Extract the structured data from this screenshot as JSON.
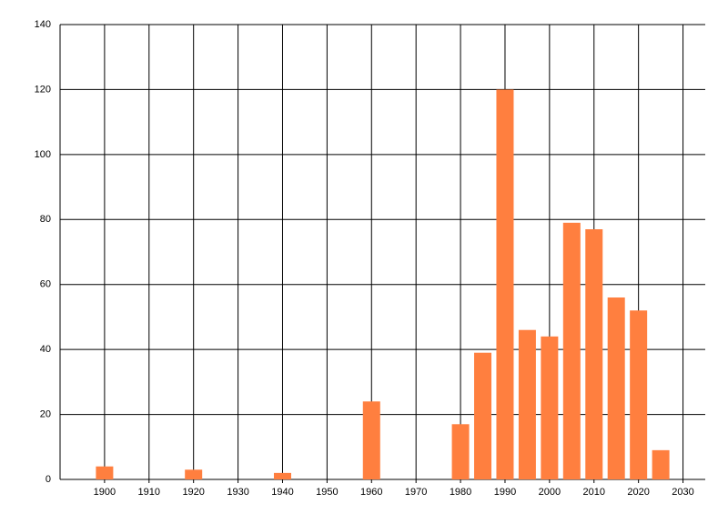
{
  "chart_data": {
    "type": "bar",
    "x": [
      1900,
      1920,
      1940,
      1960,
      1980,
      1985,
      1990,
      1995,
      2000,
      2005,
      2010,
      2015,
      2020,
      2025
    ],
    "values": [
      4,
      3,
      2,
      24,
      17,
      39,
      120,
      46,
      44,
      79,
      77,
      56,
      52,
      9
    ],
    "color": "#ff7f3f",
    "xlim": [
      1890,
      2035
    ],
    "xticks": [
      1900,
      1910,
      1920,
      1930,
      1940,
      1950,
      1960,
      1970,
      1980,
      1990,
      2000,
      2010,
      2020,
      2030
    ],
    "ylim": [
      0,
      140
    ],
    "yticks": [
      0,
      20,
      40,
      60,
      80,
      100,
      120,
      140
    ],
    "grid": true
  }
}
